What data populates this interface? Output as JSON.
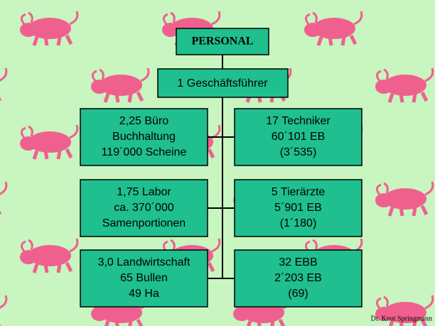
{
  "title": "PERSONAL",
  "head": "1 Geschäftsführer",
  "units": [
    {
      "lines": [
        "2,25 Büro",
        "Buchhaltung",
        "119´000 Scheine"
      ]
    },
    {
      "lines": [
        "17 Techniker",
        "60´101 EB",
        "(3´535)"
      ]
    },
    {
      "lines": [
        "1,75 Labor",
        "ca. 370´000",
        "Samenportionen"
      ]
    },
    {
      "lines": [
        "5 Tierärzte",
        "5´901 EB",
        "(1´180)"
      ]
    },
    {
      "lines": [
        "3,0 Landwirtschaft",
        "65 Bullen",
        "49 Ha"
      ]
    },
    {
      "lines": [
        "32 EBB",
        "2´203 EB",
        "(69)"
      ]
    }
  ],
  "footer": "Dr. Knut Springmann"
}
